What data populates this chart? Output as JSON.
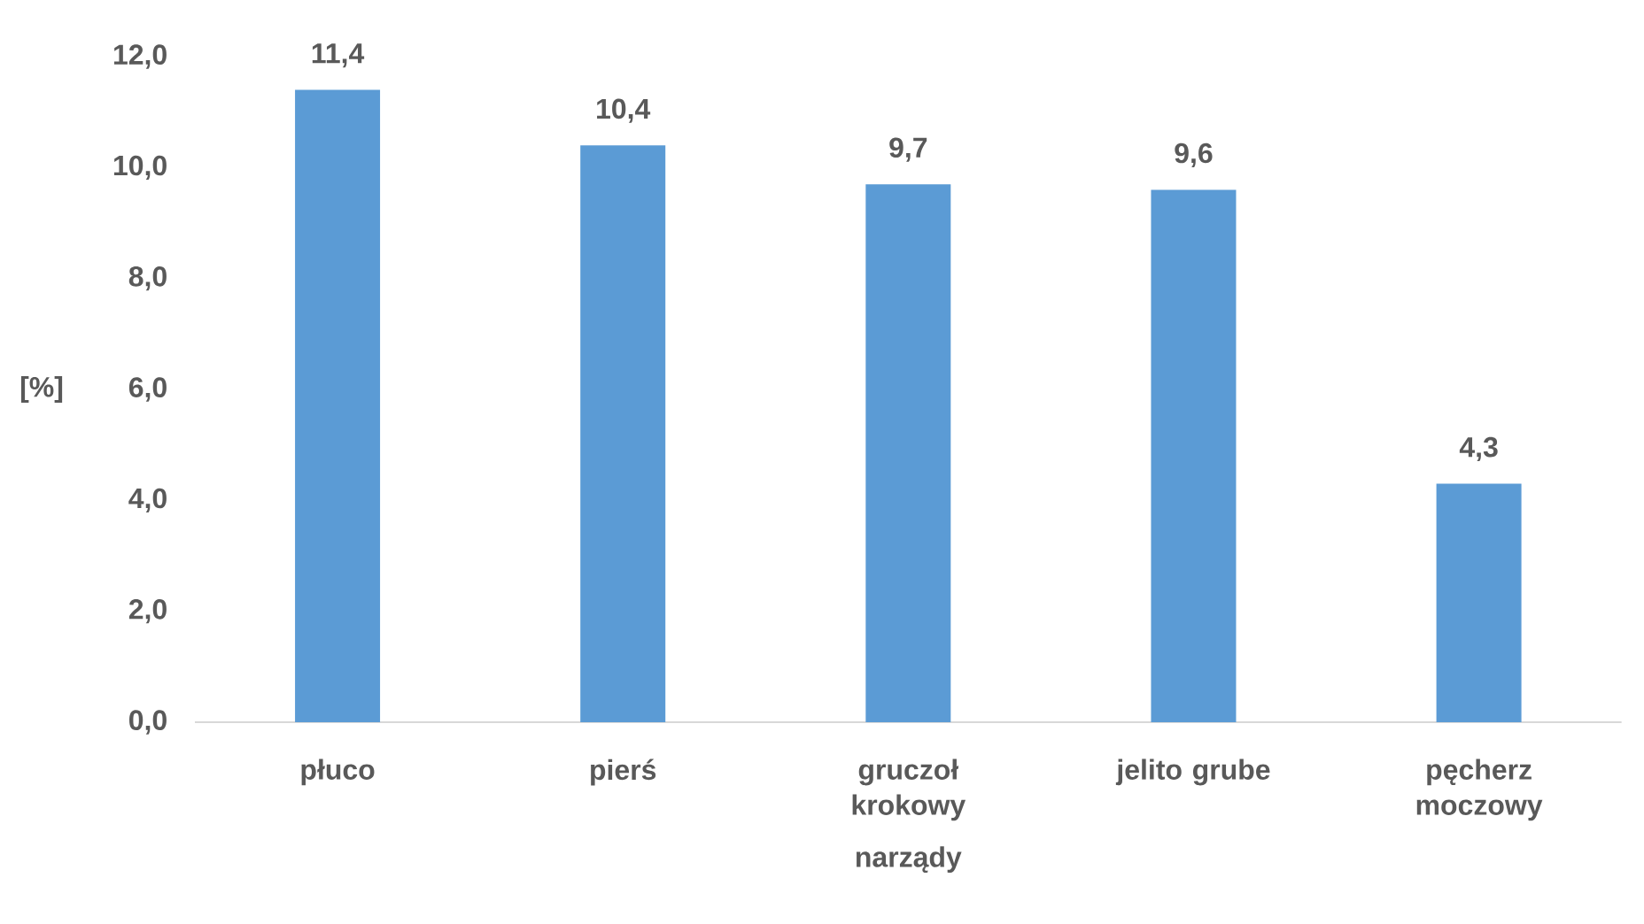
{
  "chart_data": {
    "type": "bar",
    "xlabel": "narządy",
    "ylabel": "[%]",
    "categories": [
      "płuco",
      "pierś",
      "gruczoł krokowy",
      "jelito grube",
      "pęcherz moczowy"
    ],
    "values": [
      11.4,
      10.4,
      9.7,
      9.6,
      4.3
    ],
    "value_labels": [
      "11,4",
      "10,4",
      "9,7",
      "9,6",
      "4,3"
    ],
    "color": "#5b9bd5",
    "ylim": [
      0,
      12
    ],
    "yticks": [
      {
        "value": 0,
        "label": "0,0"
      },
      {
        "value": 2,
        "label": "2,0"
      },
      {
        "value": 4,
        "label": "4,0"
      },
      {
        "value": 6,
        "label": "6,0"
      },
      {
        "value": 8,
        "label": "8,0"
      },
      {
        "value": 10,
        "label": "10,0"
      },
      {
        "value": 12,
        "label": "12,0"
      }
    ]
  }
}
